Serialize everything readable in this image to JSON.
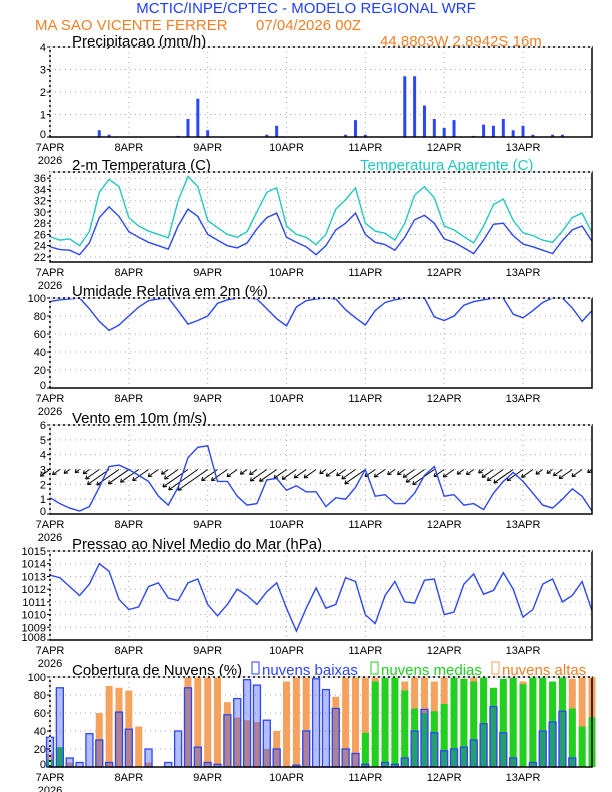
{
  "header": {
    "title": "MCTIC/INPE/CPTEC - MODELO REGIONAL WRF",
    "station": "MA SAO VICENTE FERRER",
    "run": "07/04/2026 00Z",
    "location": "44.8803W 2.8942S 16m"
  },
  "colors": {
    "title": "#2040f0",
    "orange_text": "#f08028",
    "blue": "#2b46f5",
    "cyan": "#22c8c0",
    "orange_bar": "#f5a25e",
    "green_bar": "#22d022",
    "black": "#000000"
  },
  "chart_data": [
    {
      "id": "precip",
      "type": "bar",
      "title": "Precipitacao (mm/h)",
      "ylim": [
        0,
        4
      ],
      "yticks": [
        0,
        1,
        2,
        3,
        4
      ],
      "x_step_hours": 3,
      "xticks": [
        "7APR",
        "8APR",
        "9APR",
        "10APR",
        "11APR",
        "12APR",
        "13APR"
      ],
      "year": "2026",
      "series": [
        {
          "name": "Precipitacao",
          "color": "#2b46f5",
          "values": [
            0,
            0,
            0,
            0,
            0,
            0.3,
            0.1,
            0,
            0,
            0,
            0,
            0,
            0,
            0.05,
            0.8,
            1.7,
            0.3,
            0,
            0,
            0,
            0,
            0,
            0.1,
            0.5,
            0,
            0,
            0,
            0,
            0,
            0,
            0.1,
            0.75,
            0.1,
            0,
            0,
            0,
            2.7,
            2.7,
            1.4,
            0.8,
            0.4,
            0.75,
            0,
            0.05,
            0.55,
            0.5,
            0.8,
            0.3,
            0.5,
            0.1,
            0,
            0.1,
            0.1,
            0,
            0,
            0
          ]
        }
      ]
    },
    {
      "id": "temp",
      "type": "line",
      "title": "2-m Temperatura (C)",
      "legend": "Temperatura Aparente (C)",
      "ylim": [
        21.1,
        37.1
      ],
      "yticks": [
        22,
        24,
        26,
        28,
        30,
        32,
        34,
        36
      ],
      "series": [
        {
          "name": "2-m Temperatura (C)",
          "color": "#2b46f5",
          "values": [
            23.8,
            23.3,
            23.2,
            22.4,
            24.5,
            29,
            30.9,
            29.2,
            26.5,
            25.5,
            24.6,
            24.0,
            23.4,
            27.5,
            30.5,
            29.2,
            26.0,
            25.0,
            24.0,
            23.6,
            24.5,
            27.0,
            29.0,
            29.8,
            25.5,
            24.6,
            23.8,
            22.4,
            24.0,
            26.8,
            28.0,
            29.8,
            26.0,
            24.6,
            24.2,
            23.2,
            25.5,
            28.6,
            29.4,
            28.0,
            25.2,
            24.6,
            23.6,
            22.6,
            25.0,
            27.8,
            28.0,
            25.8,
            24.3,
            23.8,
            23.2,
            22.6,
            24.9,
            26.8,
            27.5,
            24.8
          ]
        },
        {
          "name": "Temperatura Aparente (C)",
          "color": "#22c8c0",
          "values": [
            25.6,
            25.0,
            25.2,
            24.0,
            26.5,
            33.5,
            35.8,
            34.5,
            29.0,
            27.5,
            26.6,
            26.0,
            25.4,
            32.0,
            36.3,
            34.5,
            28.5,
            27.2,
            26.0,
            25.5,
            26.5,
            30.0,
            33.5,
            34.3,
            27.5,
            26.0,
            25.5,
            24.2,
            26.0,
            30.5,
            32.2,
            34.3,
            28.0,
            26.6,
            26.2,
            25.0,
            28.0,
            33.0,
            34.5,
            32.5,
            27.5,
            26.8,
            25.6,
            24.5,
            27.5,
            31.3,
            32.3,
            28.5,
            26.3,
            25.8,
            25.0,
            24.6,
            26.6,
            29.0,
            29.8,
            26.3
          ]
        }
      ]
    },
    {
      "id": "rh",
      "type": "line",
      "title": "Umidade Relativa em 2m (%)",
      "ylim": [
        0,
        100
      ],
      "yticks": [
        0,
        20,
        40,
        60,
        80,
        100
      ],
      "series": [
        {
          "name": "Umidade Relativa",
          "color": "#2b46f5",
          "values": [
            96,
            98,
            99,
            100,
            88,
            74,
            64,
            70,
            80,
            90,
            97,
            99,
            100,
            86,
            71,
            75,
            80,
            94,
            98,
            100,
            100,
            99,
            88,
            77,
            69,
            90,
            97,
            99,
            100,
            99,
            87,
            78,
            70,
            86,
            95,
            98,
            100,
            100,
            100,
            79,
            75,
            80,
            92,
            96,
            98,
            100,
            100,
            82,
            78,
            86,
            95,
            100,
            100,
            89,
            74,
            86
          ]
        }
      ]
    },
    {
      "id": "wind",
      "type": "line",
      "title": "Vento em 10m (m/s)",
      "ylim": [
        0,
        6
      ],
      "yticks": [
        0,
        1,
        2,
        3,
        4,
        5,
        6
      ],
      "arrow_baseline": 3,
      "arrow_from": "NE",
      "series": [
        {
          "name": "Vento",
          "color": "#2b46f5",
          "values": [
            1.1,
            0.7,
            0.4,
            0.2,
            0.5,
            1.8,
            3.2,
            3.3,
            3.0,
            2.6,
            2.2,
            1.2,
            0.6,
            1.8,
            3.8,
            4.5,
            4.6,
            2.2,
            2.2,
            1.2,
            0.6,
            0.7,
            2.3,
            2.4,
            1.6,
            1.9,
            1.5,
            1.5,
            0.5,
            1.1,
            1.0,
            1.8,
            3.0,
            1.2,
            1.3,
            0.7,
            0.7,
            1.4,
            2.6,
            3.2,
            1.2,
            1.3,
            0.6,
            0.7,
            0.3,
            1.4,
            2.2,
            2.8,
            2.2,
            1.4,
            0.6,
            0.4,
            1.0,
            1.7,
            1.2,
            0.2
          ]
        }
      ]
    },
    {
      "id": "pres",
      "type": "line",
      "title": "Pressao ao Nivel Medio do Mar (hPa)",
      "ylim": [
        1008,
        1015
      ],
      "yticks": [
        1008,
        1009,
        1010,
        1011,
        1012,
        1013,
        1014,
        1015
      ],
      "series": [
        {
          "name": "Pressao",
          "color": "#2b46f5",
          "values": [
            1013.1,
            1012.9,
            1012.2,
            1011.5,
            1012.4,
            1014.0,
            1013.4,
            1011.2,
            1010.4,
            1010.6,
            1012.2,
            1012.5,
            1011.3,
            1011.1,
            1012.5,
            1012.8,
            1010.8,
            1009.9,
            1010.8,
            1012.0,
            1011.5,
            1010.8,
            1011.8,
            1012.5,
            1010.5,
            1008.7,
            1010.5,
            1012.1,
            1010.5,
            1010.8,
            1012.9,
            1012.6,
            1010.0,
            1009.3,
            1011.5,
            1012.6,
            1011.0,
            1010.9,
            1012.7,
            1012.8,
            1010.0,
            1010.2,
            1012.4,
            1013.2,
            1011.6,
            1011.9,
            1013.3,
            1012.0,
            1009.8,
            1010.4,
            1012.4,
            1012.8,
            1011.0,
            1011.5,
            1012.6,
            1010.3
          ]
        }
      ]
    },
    {
      "id": "cloud",
      "type": "bar",
      "title": "Cobertura de Nuvens (%)",
      "ylim": [
        0,
        100
      ],
      "yticks": [
        0,
        20,
        40,
        60,
        80,
        100
      ],
      "series": [
        {
          "name": "nuvens altas",
          "color": "#f5a25e",
          "values": [
            15,
            10,
            5,
            0,
            0,
            60,
            90,
            88,
            85,
            45,
            5,
            0,
            0,
            0,
            100,
            100,
            100,
            100,
            72,
            55,
            52,
            50,
            20,
            40,
            95,
            100,
            100,
            0,
            0,
            78,
            100,
            100,
            100,
            100,
            90,
            100,
            95,
            100,
            100,
            95,
            100,
            100,
            98,
            100,
            95,
            88,
            90,
            100,
            95,
            100,
            100,
            90,
            100,
            98,
            100,
            100
          ]
        },
        {
          "name": "nuvens medias",
          "color": "#22d022",
          "values": [
            8,
            22,
            0,
            0,
            0,
            0,
            0,
            0,
            0,
            0,
            0,
            0,
            0,
            0,
            0,
            0,
            0,
            0,
            0,
            0,
            0,
            0,
            0,
            0,
            0,
            0,
            0,
            0,
            0,
            0,
            0,
            0,
            38,
            95,
            100,
            100,
            85,
            65,
            60,
            62,
            70,
            100,
            98,
            95,
            100,
            88,
            98,
            100,
            92,
            100,
            100,
            95,
            100,
            65,
            45,
            55
          ]
        },
        {
          "name": "nuvens baixas",
          "color": "#2b46f5",
          "values": [
            33,
            88,
            10,
            5,
            37,
            30,
            5,
            61,
            42,
            0,
            20,
            0,
            5,
            40,
            88,
            22,
            5,
            3,
            58,
            76,
            97,
            91,
            52,
            20,
            0,
            2,
            40,
            98,
            86,
            65,
            20,
            15,
            3,
            0,
            5,
            3,
            10,
            40,
            64,
            38,
            18,
            20,
            22,
            30,
            48,
            67,
            38,
            10,
            0,
            5,
            40,
            50,
            62,
            10,
            0,
            0
          ]
        }
      ]
    }
  ]
}
